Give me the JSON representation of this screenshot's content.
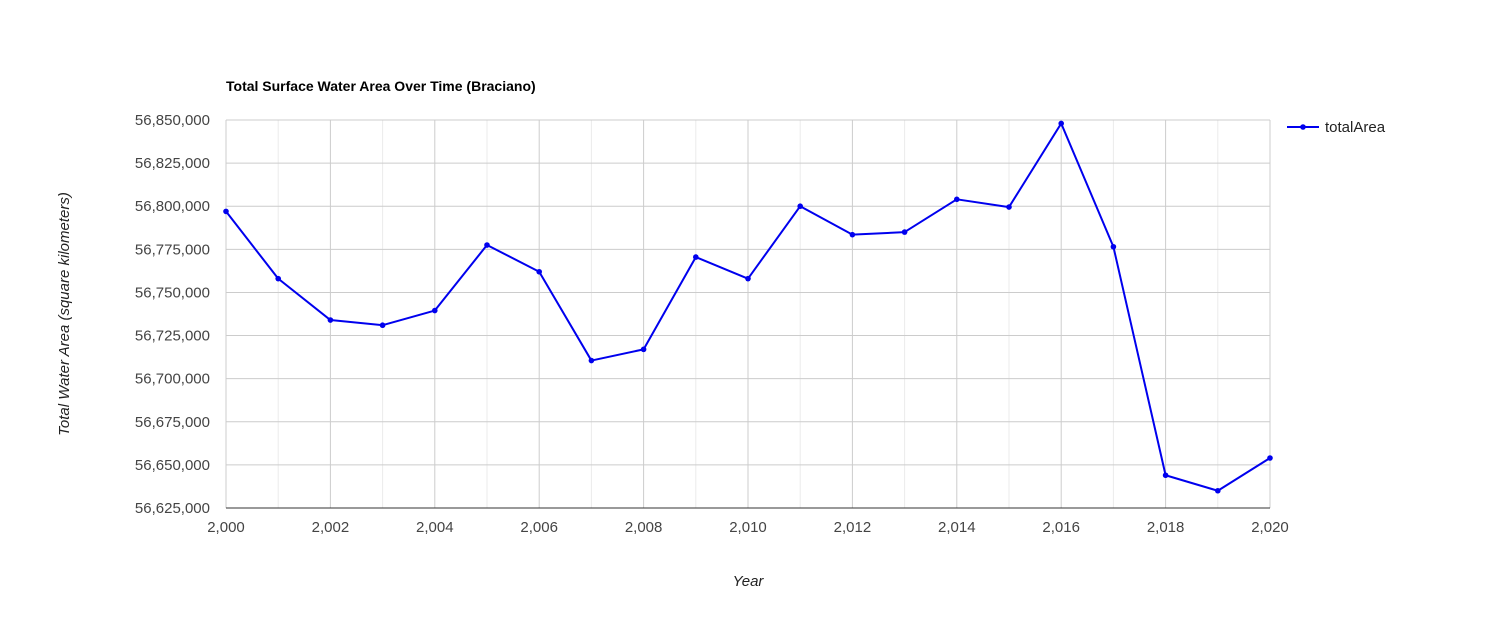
{
  "chart_data": {
    "type": "line",
    "title": "Total Surface Water Area Over Time (Braciano)",
    "xlabel": "Year",
    "ylabel": "Total Water Area (square kilometers)",
    "xlim": [
      2000,
      2020
    ],
    "ylim": [
      56625000,
      56850000
    ],
    "x_ticks": [
      "2,000",
      "2,002",
      "2,004",
      "2,006",
      "2,008",
      "2,010",
      "2,012",
      "2,014",
      "2,016",
      "2,018",
      "2,020"
    ],
    "y_ticks": [
      "56,625,000",
      "56,650,000",
      "56,675,000",
      "56,700,000",
      "56,725,000",
      "56,750,000",
      "56,775,000",
      "56,800,000",
      "56,825,000",
      "56,850,000"
    ],
    "grid": true,
    "legend_position": "right",
    "series": [
      {
        "name": "totalArea",
        "color": "#0000ee",
        "x": [
          2000,
          2001,
          2002,
          2003,
          2004,
          2005,
          2006,
          2007,
          2008,
          2009,
          2010,
          2011,
          2012,
          2013,
          2014,
          2015,
          2016,
          2017,
          2018,
          2019,
          2020
        ],
        "values": [
          56797000,
          56758000,
          56734000,
          56731000,
          56739500,
          56777500,
          56762000,
          56710500,
          56717000,
          56770500,
          56758000,
          56800000,
          56783500,
          56785000,
          56804000,
          56799500,
          56848000,
          56776500,
          56644000,
          56635000,
          56654000
        ]
      }
    ]
  }
}
